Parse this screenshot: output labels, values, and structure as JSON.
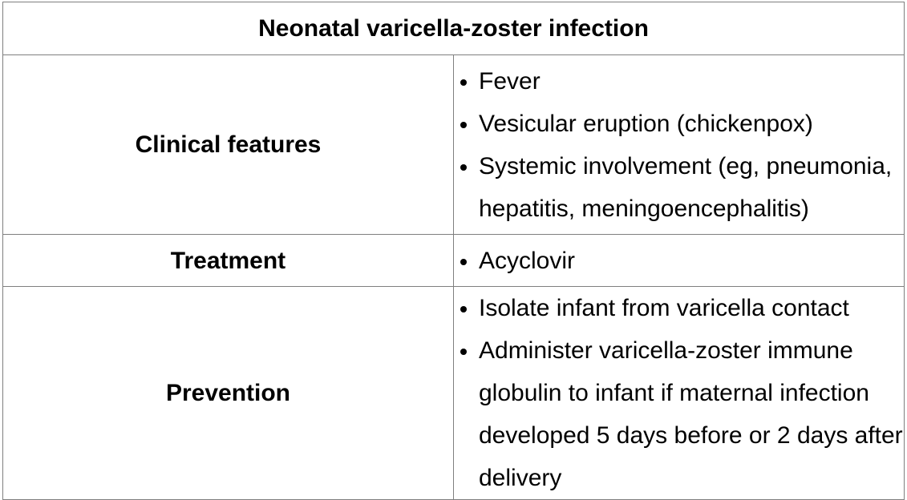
{
  "table": {
    "title": "Neonatal varicella-zoster infection",
    "rows": [
      {
        "label": "Clinical features",
        "items": [
          "Fever",
          "Vesicular eruption (chickenpox)",
          "Systemic involvement (eg, pneumonia, hepatitis, meningoencephalitis)"
        ]
      },
      {
        "label": "Treatment",
        "items": [
          "Acyclovir"
        ]
      },
      {
        "label": "Prevention",
        "items": [
          "Isolate infant from varicella contact",
          "Administer varicella-zoster immune globulin to infant if maternal infection developed 5 days before or 2 days after delivery"
        ]
      }
    ]
  }
}
